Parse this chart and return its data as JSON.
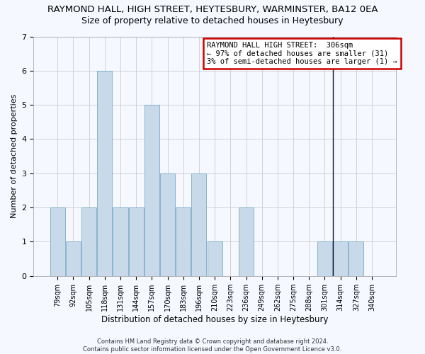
{
  "title_main": "RAYMOND HALL, HIGH STREET, HEYTESBURY, WARMINSTER, BA12 0EA",
  "title_sub": "Size of property relative to detached houses in Heytesbury",
  "xlabel": "Distribution of detached houses by size in Heytesbury",
  "ylabel": "Number of detached properties",
  "footer": "Contains HM Land Registry data © Crown copyright and database right 2024.\nContains public sector information licensed under the Open Government Licence v3.0.",
  "categories": [
    "79sqm",
    "92sqm",
    "105sqm",
    "118sqm",
    "131sqm",
    "144sqm",
    "157sqm",
    "170sqm",
    "183sqm",
    "196sqm",
    "210sqm",
    "223sqm",
    "236sqm",
    "249sqm",
    "262sqm",
    "275sqm",
    "288sqm",
    "301sqm",
    "314sqm",
    "327sqm",
    "340sqm"
  ],
  "values": [
    2,
    1,
    2,
    6,
    2,
    2,
    5,
    3,
    2,
    3,
    1,
    0,
    2,
    0,
    0,
    0,
    0,
    1,
    1,
    1,
    0
  ],
  "bar_color": "#c8daea",
  "bar_edge_color": "#7aaac8",
  "vline_x": 17.5,
  "vline_color": "#111133",
  "annotation_text": "RAYMOND HALL HIGH STREET:  306sqm\n← 97% of detached houses are smaller (31)\n3% of semi-detached houses are larger (1) →",
  "annotation_box_facecolor": "#ffffff",
  "annotation_box_edgecolor": "#cc0000",
  "ylim": [
    0,
    7
  ],
  "yticks": [
    0,
    1,
    2,
    3,
    4,
    5,
    6,
    7
  ],
  "grid_color": "#cccccc",
  "background_color": "#f5f8ff",
  "title_main_fontsize": 9.5,
  "title_sub_fontsize": 9,
  "xlabel_fontsize": 8.5,
  "ylabel_fontsize": 8,
  "tick_fontsize": 7,
  "annotation_fontsize": 7.5,
  "footer_fontsize": 6
}
